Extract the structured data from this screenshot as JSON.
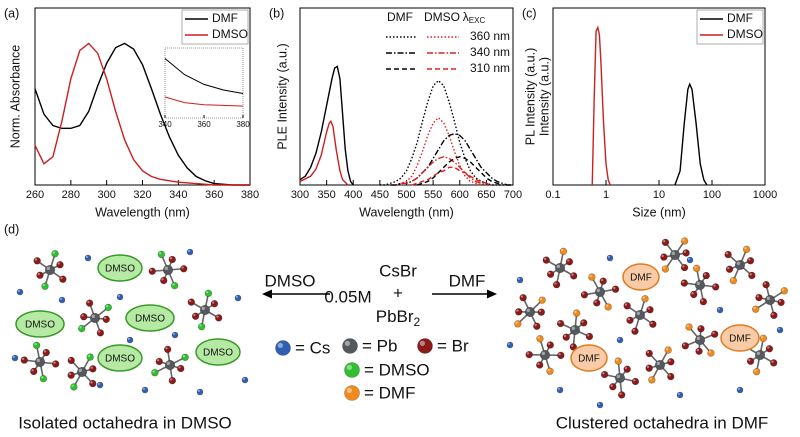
{
  "chart_data": [
    {
      "type": "line",
      "label": "(a)",
      "xlabel": "Wavelength (nm)",
      "ylabel": "Norm. Absorbance",
      "xlim": [
        260,
        380
      ],
      "xticks": [
        260,
        280,
        300,
        320,
        340,
        360,
        380
      ],
      "ylim": [
        0,
        1.25
      ],
      "legend": "upper right",
      "series": [
        {
          "name": "DMF",
          "color": "#000000",
          "dash": "solid",
          "x": [
            260,
            265,
            270,
            275,
            280,
            285,
            290,
            295,
            300,
            305,
            310,
            315,
            320,
            325,
            330,
            335,
            340,
            345,
            350,
            355,
            360,
            370,
            380
          ],
          "values": [
            0.68,
            0.5,
            0.42,
            0.4,
            0.4,
            0.42,
            0.52,
            0.7,
            0.86,
            0.97,
            1.0,
            0.96,
            0.85,
            0.68,
            0.5,
            0.34,
            0.21,
            0.12,
            0.06,
            0.03,
            0.01,
            0,
            0
          ]
        },
        {
          "name": "DMSO",
          "color": "#cc1f1f",
          "dash": "solid",
          "x": [
            260,
            265,
            270,
            275,
            280,
            285,
            290,
            295,
            300,
            305,
            310,
            315,
            320,
            325,
            330,
            340,
            350,
            360,
            380
          ],
          "values": [
            0.28,
            0.15,
            0.2,
            0.45,
            0.75,
            0.95,
            1.0,
            0.93,
            0.75,
            0.52,
            0.32,
            0.18,
            0.1,
            0.06,
            0.04,
            0.02,
            0.01,
            0,
            0
          ]
        }
      ]
    },
    {
      "type": "line",
      "inset": true,
      "xlim": [
        340,
        380
      ],
      "xticks": [
        340,
        360,
        380
      ],
      "ylim": [
        0,
        1
      ],
      "series": [
        {
          "color": "#000000",
          "dash": "solid",
          "x": [
            340,
            350,
            360,
            370,
            380
          ],
          "values": [
            0.85,
            0.62,
            0.48,
            0.4,
            0.35
          ]
        },
        {
          "color": "#cc1f1f",
          "dash": "solid",
          "x": [
            340,
            350,
            360,
            370,
            380
          ],
          "values": [
            0.3,
            0.22,
            0.19,
            0.18,
            0.17
          ]
        }
      ]
    },
    {
      "type": "line",
      "label": "(b)",
      "xlabel": "Wavelength (nm)",
      "ylabel": "PLE Intensity (a.u.)",
      "y2label": "PL Intensity (a.u.)",
      "xlim": [
        300,
        700
      ],
      "xticks": [
        300,
        350,
        400,
        450,
        500,
        550,
        600,
        650,
        700
      ],
      "ylim": [
        0,
        1
      ],
      "legend": {
        "headers": [
          "DMF",
          "DMSO"
        ],
        "lambda": "λ",
        "lambda_sub": "EXC",
        "rows": [
          "360 nm",
          "340 nm",
          "310 nm"
        ]
      },
      "series": [
        {
          "color": "#000000",
          "dash": "solid",
          "x": [
            300,
            310,
            320,
            330,
            340,
            350,
            360,
            365,
            370,
            375,
            380,
            385,
            390,
            395,
            400
          ],
          "values": [
            0.03,
            0.05,
            0.1,
            0.18,
            0.3,
            0.45,
            0.6,
            0.66,
            0.67,
            0.6,
            0.4,
            0.2,
            0.08,
            0.02,
            0
          ]
        },
        {
          "color": "#cc1f1f",
          "dash": "solid",
          "x": [
            300,
            320,
            330,
            340,
            350,
            355,
            358,
            362,
            368,
            375,
            380,
            390
          ],
          "values": [
            0.02,
            0.05,
            0.09,
            0.17,
            0.3,
            0.35,
            0.36,
            0.33,
            0.2,
            0.08,
            0.03,
            0
          ]
        },
        {
          "color": "#000000",
          "dash": "dotted",
          "x": [
            450,
            460,
            470,
            480,
            490,
            500,
            510,
            520,
            530,
            540,
            550,
            560,
            570,
            580,
            590,
            600,
            610,
            620,
            630,
            640,
            650,
            660,
            670,
            680,
            690,
            700
          ],
          "values": [
            0,
            0,
            0.01,
            0.02,
            0.04,
            0.08,
            0.15,
            0.24,
            0.36,
            0.47,
            0.56,
            0.59,
            0.56,
            0.47,
            0.36,
            0.24,
            0.15,
            0.08,
            0.04,
            0.02,
            0.01,
            0,
            0,
            0,
            0,
            0
          ]
        },
        {
          "color": "#e02020",
          "dash": "dotted",
          "x": [
            480,
            490,
            500,
            510,
            520,
            530,
            540,
            550,
            560,
            570,
            580,
            590,
            600,
            610,
            620,
            630,
            640
          ],
          "values": [
            0,
            0.01,
            0.02,
            0.05,
            0.11,
            0.19,
            0.28,
            0.35,
            0.38,
            0.35,
            0.28,
            0.19,
            0.11,
            0.05,
            0.02,
            0.01,
            0
          ]
        },
        {
          "color": "#000000",
          "dash": "dashdot",
          "x": [
            470,
            480,
            490,
            500,
            510,
            520,
            530,
            540,
            550,
            560,
            570,
            580,
            590,
            600,
            610,
            620,
            630,
            640,
            650,
            660,
            670,
            680,
            690,
            700
          ],
          "values": [
            0,
            0,
            0.01,
            0.01,
            0.02,
            0.04,
            0.07,
            0.1,
            0.15,
            0.2,
            0.25,
            0.28,
            0.29,
            0.28,
            0.25,
            0.2,
            0.15,
            0.1,
            0.07,
            0.04,
            0.02,
            0.01,
            0,
            0
          ]
        },
        {
          "color": "#e02020",
          "dash": "dashdot",
          "x": [
            490,
            500,
            510,
            520,
            530,
            540,
            550,
            560,
            570,
            580,
            590,
            600,
            610,
            620,
            630,
            640,
            650
          ],
          "values": [
            0.01,
            0.01,
            0.02,
            0.04,
            0.07,
            0.1,
            0.13,
            0.15,
            0.16,
            0.15,
            0.13,
            0.1,
            0.07,
            0.04,
            0.02,
            0.01,
            0
          ]
        },
        {
          "color": "#000000",
          "dash": "dashed",
          "x": [
            520,
            530,
            540,
            550,
            560,
            570,
            580,
            590,
            600,
            610,
            620,
            630,
            640,
            650,
            660,
            670,
            680
          ],
          "values": [
            0,
            0.01,
            0.02,
            0.04,
            0.07,
            0.1,
            0.13,
            0.15,
            0.16,
            0.15,
            0.13,
            0.1,
            0.07,
            0.04,
            0.02,
            0.01,
            0
          ]
        },
        {
          "color": "#e02020",
          "dash": "dashed",
          "x": [
            510,
            520,
            530,
            540,
            550,
            560,
            570,
            580,
            590,
            600,
            610,
            620,
            630,
            640,
            650,
            660
          ],
          "values": [
            0,
            0.01,
            0.02,
            0.03,
            0.05,
            0.07,
            0.08,
            0.1,
            0.1,
            0.08,
            0.07,
            0.05,
            0.03,
            0.02,
            0.01,
            0
          ]
        }
      ]
    },
    {
      "type": "line",
      "label": "(c)",
      "xlabel": "Size (nm)",
      "ylabel": "Intensity (a.u.)",
      "xlog": true,
      "xlim": [
        0.1,
        1000
      ],
      "xticks": [
        0.1,
        1,
        10,
        100,
        1000
      ],
      "ylim": [
        0,
        1
      ],
      "legend": "upper right",
      "series": [
        {
          "name": "DMF",
          "color": "#000000",
          "dash": "solid",
          "x": [
            20,
            25,
            30,
            35,
            38,
            42,
            50,
            60,
            70,
            80
          ],
          "values": [
            0,
            0.08,
            0.35,
            0.54,
            0.57,
            0.54,
            0.35,
            0.12,
            0.03,
            0
          ]
        },
        {
          "name": "DMSO",
          "color": "#cc1f1f",
          "dash": "solid",
          "x": [
            0.55,
            0.6,
            0.65,
            0.7,
            0.75,
            0.8,
            0.9,
            1.0,
            1.1,
            1.2
          ],
          "values": [
            0,
            0.5,
            0.87,
            0.89,
            0.85,
            0.7,
            0.35,
            0.12,
            0.03,
            0
          ]
        }
      ]
    }
  ],
  "diagram": {
    "label": "(d)",
    "reaction": {
      "left_solvent": "DMSO",
      "concentration": "0.05M",
      "reactant_1": "CsBr",
      "plus": "+",
      "reactant_2": "PbBr",
      "reactant_2_sub": "2",
      "right_solvent": "DMF"
    },
    "key": [
      {
        "label": "= Cs",
        "color": "#2f5fb3"
      },
      {
        "label": "= Pb",
        "color": "#55585c"
      },
      {
        "label": "= Br",
        "color": "#8b1a1a"
      },
      {
        "label": "= DMSO",
        "color": "#2fbf2f"
      },
      {
        "label": "= DMF",
        "color": "#f08a1c"
      }
    ],
    "left": {
      "caption": "Isolated octahedra in DMSO",
      "solvent_labels": [
        "DMSO",
        "DMSO",
        "DMSO",
        "DMSO",
        "DMSO"
      ]
    },
    "right": {
      "caption": "Clustered octahedra in DMF",
      "solvent_labels": [
        "DMF",
        "DMF",
        "DMF"
      ]
    }
  }
}
